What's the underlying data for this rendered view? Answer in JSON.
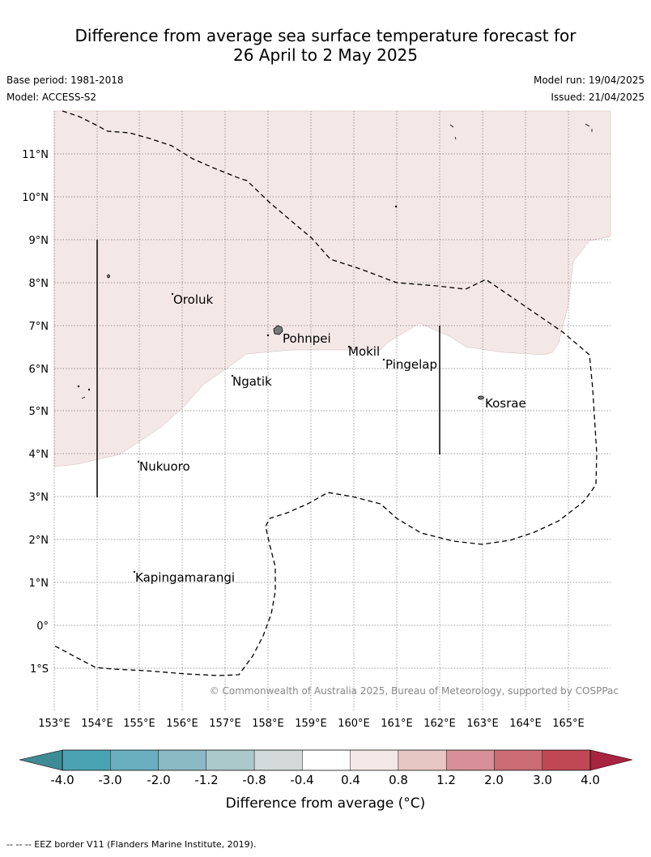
{
  "title_line1": "Difference from average sea surface temperature forecast for",
  "title_line2": "26 April to 2 May 2025",
  "meta": {
    "base_period": "Base period: 1981-2018",
    "model": "Model: ACCESS-S2",
    "model_run": "Model run: 19/04/2025",
    "issued": "Issued: 21/04/2025"
  },
  "copyright": "© Commonwealth of Australia 2025, Bureau of Meteorology, supported by COSPPac",
  "lat_labels": [
    "11°N",
    "10°N",
    "9°N",
    "8°N",
    "7°N",
    "6°N",
    "5°N",
    "4°N",
    "3°N",
    "2°N",
    "1°N",
    "0°",
    "1°S"
  ],
  "lon_labels": [
    "153°E",
    "154°E",
    "155°E",
    "156°E",
    "157°E",
    "158°E",
    "159°E",
    "160°E",
    "161°E",
    "162°E",
    "163°E",
    "164°E",
    "165°E"
  ],
  "places": [
    {
      "name": "Oroluk"
    },
    {
      "name": "Pohnpei"
    },
    {
      "name": "Mokil"
    },
    {
      "name": "Pingelap"
    },
    {
      "name": "Ngatik"
    },
    {
      "name": "Kosrae"
    },
    {
      "name": "Nukuoro"
    },
    {
      "name": "Kapingamarangi"
    }
  ],
  "colorbar": {
    "ticks": [
      "-4.0",
      "-3.0",
      "-2.0",
      "-1.2",
      "-0.8",
      "-0.4",
      "0.4",
      "0.8",
      "1.2",
      "2.0",
      "3.0",
      "4.0"
    ],
    "colors": [
      "#4aa3b3",
      "#69afbf",
      "#8bbac5",
      "#abc9cb",
      "#d2d9d8",
      "#ffffff",
      "#f4e8e7",
      "#e7c7c3",
      "#d88f98",
      "#cc6c75",
      "#c04855"
    ],
    "under_color": "#3e8b96",
    "over_color": "#a82440",
    "label": "Difference from average (°C)"
  },
  "footer": "--  --  -- EEZ border V11 (Flanders Marine Institute, 2019)."
}
